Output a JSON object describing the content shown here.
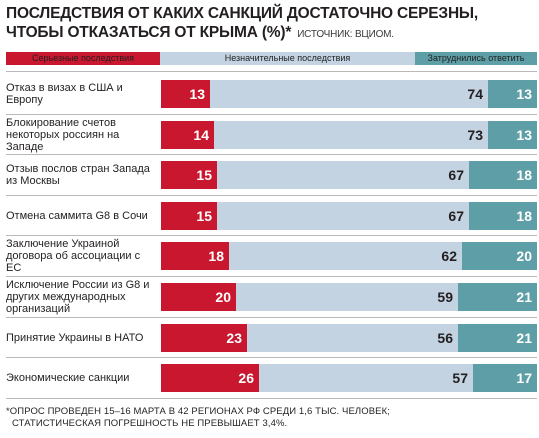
{
  "title_line1": "ПОСЛЕДСТВИЯ ОТ КАКИХ САНКЦИЙ ДОСТАТОЧНО СЕРЕЗНЫ,",
  "title_line2": "ЧТОБЫ ОТКАЗАТЬСЯ ОТ КРЫМА (%)*",
  "source": "ИСТОЧНИК: ВЦИОМ.",
  "footnote_line1": "*ОПРОС ПРОВЕДЕН 15–16 МАРТА В 42 РЕГИОНАХ РФ СРЕДИ 1,6 ТЫС. ЧЕЛОВЕК;",
  "footnote_line2": "СТАТИСТИЧЕСКАЯ ПОГРЕШНОСТЬ НЕ ПРЕВЫШАЕТ 3,4%.",
  "colors": {
    "serious": "#c8172e",
    "minor": "#c3d3e2",
    "unsure": "#5e9ea7"
  },
  "chart_data": {
    "type": "bar",
    "stacked": true,
    "orientation": "horizontal",
    "categories": [
      "Отказ в визах в США и Европу",
      "Блокирование счетов некоторых россиян на Западе",
      "Отзыв послов стран Запада из Москвы",
      "Отмена саммита G8 в Сочи",
      "Заключение Украиной договора об ассоциации с ЕС",
      "Исключение России из G8 и других международных организаций",
      "Принятие Украины в НАТО",
      "Экономические санкции"
    ],
    "series": [
      {
        "name": "Серьезные последствия",
        "values": [
          13,
          14,
          15,
          15,
          18,
          20,
          23,
          26
        ]
      },
      {
        "name": "Незначительные последствия",
        "values": [
          74,
          73,
          67,
          67,
          62,
          59,
          56,
          57
        ]
      },
      {
        "name": "Затруднились ответить",
        "values": [
          13,
          13,
          18,
          18,
          20,
          21,
          21,
          17
        ]
      }
    ],
    "legend_position": "top"
  }
}
